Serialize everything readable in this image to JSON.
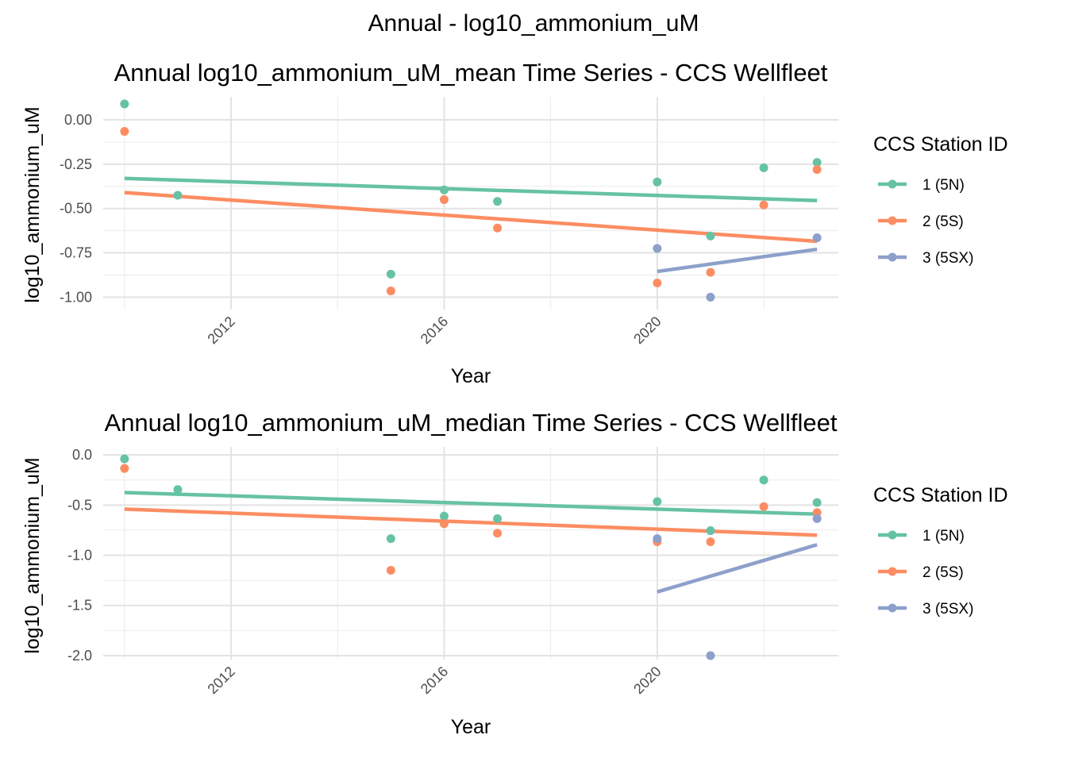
{
  "figure_title": "Annual - log10_ammonium_uM",
  "colors": {
    "1 (5N)": "#66c2a5",
    "2 (5S)": "#fc8d62",
    "3 (5SX)": "#8da0cb"
  },
  "chart_data": [
    {
      "type": "scatter",
      "title": "Annual log10_ammonium_uM_mean Time Series - CCS Wellfleet",
      "xlabel": "Year",
      "ylabel": "log10_ammonium_uM",
      "xlim": [
        2009.6,
        2023.4
      ],
      "ylim": [
        -1.07,
        0.13
      ],
      "x_ticks": [
        2012,
        2016,
        2020
      ],
      "y_ticks": [
        0.0,
        -0.25,
        -0.5,
        -0.75,
        -1.0
      ],
      "y_tick_labels": [
        "0.00",
        "-0.25",
        "-0.50",
        "-0.75",
        "-1.00"
      ],
      "grid": true,
      "legend": {
        "title": "CCS Station ID",
        "position": "right"
      },
      "series": [
        {
          "name": "1 (5N)",
          "points": [
            [
              2010,
              0.09
            ],
            [
              2011,
              -0.425
            ],
            [
              2015,
              -0.87
            ],
            [
              2016,
              -0.395
            ],
            [
              2017,
              -0.46
            ],
            [
              2020,
              -0.35
            ],
            [
              2021,
              -0.655
            ],
            [
              2022,
              -0.27
            ],
            [
              2023,
              -0.24
            ]
          ],
          "trend": [
            [
              2010,
              -0.33
            ],
            [
              2023,
              -0.455
            ]
          ]
        },
        {
          "name": "2 (5S)",
          "points": [
            [
              2010,
              -0.065
            ],
            [
              2015,
              -0.965
            ],
            [
              2016,
              -0.45
            ],
            [
              2017,
              -0.61
            ],
            [
              2020,
              -0.92
            ],
            [
              2021,
              -0.86
            ],
            [
              2022,
              -0.48
            ],
            [
              2023,
              -0.28
            ]
          ],
          "trend": [
            [
              2010,
              -0.41
            ],
            [
              2023,
              -0.685
            ]
          ]
        },
        {
          "name": "3 (5SX)",
          "points": [
            [
              2020,
              -0.725
            ],
            [
              2021,
              -1.0
            ],
            [
              2023,
              -0.665
            ]
          ],
          "trend": [
            [
              2020,
              -0.855
            ],
            [
              2023,
              -0.73
            ]
          ]
        }
      ]
    },
    {
      "type": "scatter",
      "title": "Annual log10_ammonium_uM_median Time Series - CCS Wellfleet",
      "xlabel": "Year",
      "ylabel": "log10_ammonium_uM",
      "xlim": [
        2009.6,
        2023.4
      ],
      "ylim": [
        -2.04,
        0.08
      ],
      "x_ticks": [
        2012,
        2016,
        2020
      ],
      "y_ticks": [
        0.0,
        -0.5,
        -1.0,
        -1.5,
        -2.0
      ],
      "y_tick_labels": [
        "0.0",
        "-0.5",
        "-1.0",
        "-1.5",
        "-2.0"
      ],
      "grid": true,
      "legend": {
        "title": "CCS Station ID",
        "position": "right"
      },
      "series": [
        {
          "name": "1 (5N)",
          "points": [
            [
              2010,
              -0.04
            ],
            [
              2011,
              -0.345
            ],
            [
              2015,
              -0.835
            ],
            [
              2016,
              -0.61
            ],
            [
              2017,
              -0.635
            ],
            [
              2020,
              -0.465
            ],
            [
              2021,
              -0.755
            ],
            [
              2022,
              -0.25
            ],
            [
              2023,
              -0.475
            ]
          ],
          "trend": [
            [
              2010,
              -0.375
            ],
            [
              2023,
              -0.59
            ]
          ]
        },
        {
          "name": "2 (5S)",
          "points": [
            [
              2010,
              -0.135
            ],
            [
              2015,
              -1.15
            ],
            [
              2016,
              -0.685
            ],
            [
              2017,
              -0.78
            ],
            [
              2020,
              -0.865
            ],
            [
              2021,
              -0.865
            ],
            [
              2022,
              -0.515
            ],
            [
              2023,
              -0.575
            ]
          ],
          "trend": [
            [
              2010,
              -0.54
            ],
            [
              2023,
              -0.8
            ]
          ]
        },
        {
          "name": "3 (5SX)",
          "points": [
            [
              2020,
              -0.835
            ],
            [
              2021,
              -2.0
            ],
            [
              2023,
              -0.635
            ]
          ],
          "trend": [
            [
              2020,
              -1.365
            ],
            [
              2023,
              -0.895
            ]
          ]
        }
      ]
    }
  ]
}
